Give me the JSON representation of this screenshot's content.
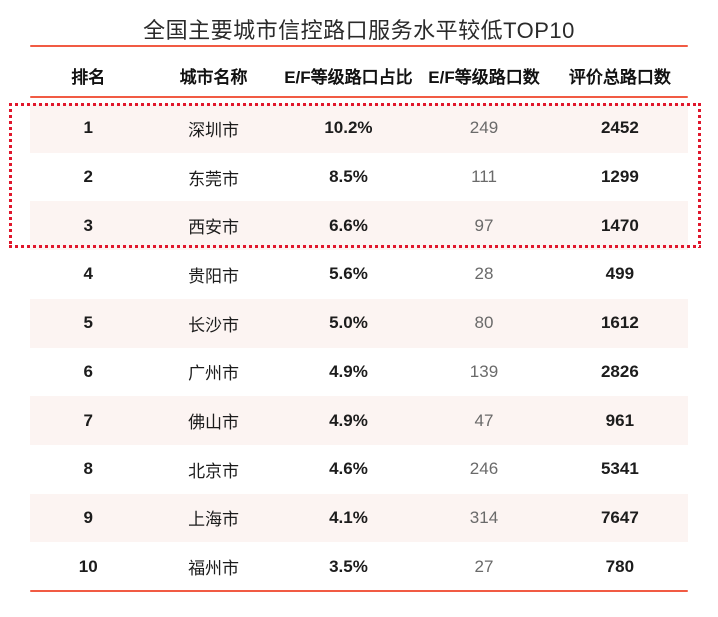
{
  "title": "全国主要城市信控路口服务水平较低TOP10",
  "table": {
    "headers": [
      {
        "key": "rank",
        "label": "排名"
      },
      {
        "key": "city",
        "label": "城市名称"
      },
      {
        "key": "ratio",
        "label": "E/F等级路口占比"
      },
      {
        "key": "count",
        "label": "E/F等级路口数"
      },
      {
        "key": "total",
        "label": "评价总路口数"
      }
    ],
    "rows": [
      {
        "rank": "1",
        "city": "深圳市",
        "ratio": "10.2%",
        "count": "249",
        "total": "2452"
      },
      {
        "rank": "2",
        "city": "东莞市",
        "ratio": "8.5%",
        "count": "111",
        "total": "1299"
      },
      {
        "rank": "3",
        "city": "西安市",
        "ratio": "6.6%",
        "count": "97",
        "total": "1470"
      },
      {
        "rank": "4",
        "city": "贵阳市",
        "ratio": "5.6%",
        "count": "28",
        "total": "499"
      },
      {
        "rank": "5",
        "city": "长沙市",
        "ratio": "5.0%",
        "count": "80",
        "total": "1612"
      },
      {
        "rank": "6",
        "city": "广州市",
        "ratio": "4.9%",
        "count": "139",
        "total": "2826"
      },
      {
        "rank": "7",
        "city": "佛山市",
        "ratio": "4.9%",
        "count": "47",
        "total": "961"
      },
      {
        "rank": "8",
        "city": "北京市",
        "ratio": "4.6%",
        "count": "246",
        "total": "5341"
      },
      {
        "rank": "9",
        "city": "上海市",
        "ratio": "4.1%",
        "count": "314",
        "total": "7647"
      },
      {
        "rank": "10",
        "city": "福州市",
        "ratio": "3.5%",
        "count": "27",
        "total": "780"
      }
    ],
    "highlighted_ranks": [
      1,
      2,
      3
    ],
    "zebra_striping": true
  },
  "chart_data": {
    "type": "table",
    "title": "全国主要城市信控路口服务水平较低TOP10",
    "columns": [
      "排名",
      "城市名称",
      "E/F等级路口占比",
      "E/F等级路口数",
      "评价总路口数"
    ],
    "rows": [
      [
        1,
        "深圳市",
        "10.2%",
        249,
        2452
      ],
      [
        2,
        "东莞市",
        "8.5%",
        111,
        1299
      ],
      [
        3,
        "西安市",
        "6.6%",
        97,
        1470
      ],
      [
        4,
        "贵阳市",
        "5.6%",
        28,
        499
      ],
      [
        5,
        "长沙市",
        "5.0%",
        80,
        1612
      ],
      [
        6,
        "广州市",
        "4.9%",
        139,
        2826
      ],
      [
        7,
        "佛山市",
        "4.9%",
        47,
        961
      ],
      [
        8,
        "北京市",
        "4.6%",
        246,
        5341
      ],
      [
        9,
        "上海市",
        "4.1%",
        314,
        7647
      ],
      [
        10,
        "福州市",
        "3.5%",
        27,
        780
      ]
    ],
    "highlighted_rows": [
      1,
      2,
      3
    ],
    "legend_position": "none",
    "grid": false
  },
  "colors": {
    "accent_line": "#f15b44",
    "dotted_border": "#e0162b",
    "row_stripe": "#fcf4f2",
    "text_primary": "#1c1c1c",
    "text_secondary": "#6a6a6a"
  }
}
